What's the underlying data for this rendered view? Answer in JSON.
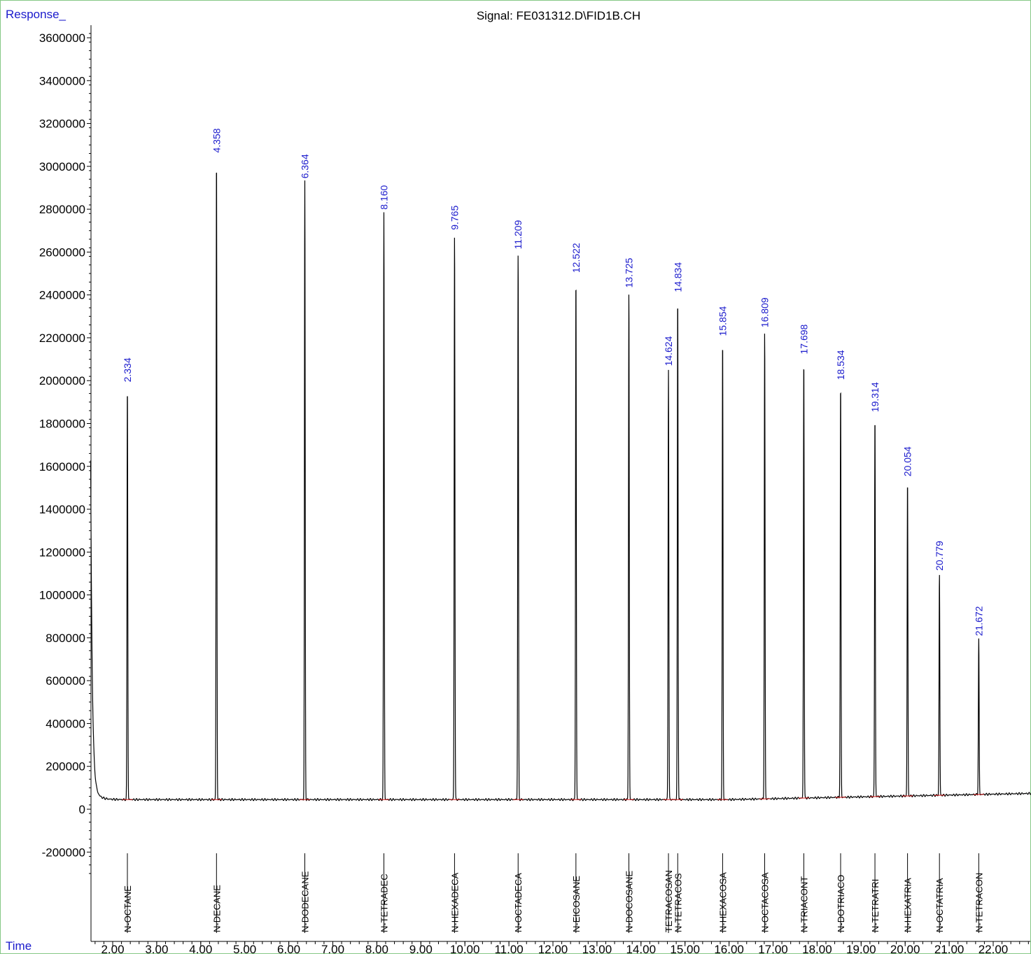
{
  "chart_data": {
    "type": "line",
    "title": "Signal: FE031312.D\\FID1B.CH",
    "xlabel": "Time",
    "ylabel": "Response_",
    "xlim": [
      1.5,
      22.9
    ],
    "ylim": [
      -300000,
      3700000
    ],
    "x_ticks": [
      "2.00",
      "3.00",
      "4.00",
      "5.00",
      "6.00",
      "7.00",
      "8.00",
      "9.00",
      "10.00",
      "11.00",
      "12.00",
      "13.00",
      "14.00",
      "15.00",
      "16.00",
      "17.00",
      "18.00",
      "19.00",
      "20.00",
      "21.00",
      "22.00"
    ],
    "y_ticks": [
      "3600000",
      "3400000",
      "3200000",
      "3000000",
      "2800000",
      "2600000",
      "2400000",
      "2200000",
      "2000000",
      "1800000",
      "1600000",
      "1400000",
      "1200000",
      "1000000",
      "800000",
      "600000",
      "400000",
      "200000",
      "0",
      "-200000"
    ],
    "series": [
      {
        "peaks": [
          {
            "rt": 2.334,
            "label": "2.334",
            "height": 1980000,
            "compound": "N-OCTANE"
          },
          {
            "rt": 4.358,
            "label": "4.358",
            "height": 3050000,
            "compound": "N-DECANE"
          },
          {
            "rt": 6.364,
            "label": "6.364",
            "height": 2930000,
            "compound": "N-DODECANE"
          },
          {
            "rt": 8.16,
            "label": "8.160",
            "height": 2785000,
            "compound": "N-TETRADEC"
          },
          {
            "rt": 9.765,
            "label": "9.765",
            "height": 2690000,
            "compound": "N-HEXADECA"
          },
          {
            "rt": 11.209,
            "label": "11.209",
            "height": 2600000,
            "compound": "N-OCTADECA"
          },
          {
            "rt": 12.522,
            "label": "12.522",
            "height": 2490000,
            "compound": "N-EICOSANE"
          },
          {
            "rt": 13.725,
            "label": "13.725",
            "height": 2420000,
            "compound": "N-DOCOSANE"
          },
          {
            "rt": 14.624,
            "label": "14.624",
            "height": 2055000,
            "compound": "TETRACOSAN"
          },
          {
            "rt": 14.834,
            "label": "14.834",
            "height": 2400000,
            "compound": "N-TETRACOS"
          },
          {
            "rt": 15.854,
            "label": "15.854",
            "height": 2195000,
            "compound": "N-HEXACOSA"
          },
          {
            "rt": 16.809,
            "label": "16.809",
            "height": 2235000,
            "compound": "N-OCTACOSA"
          },
          {
            "rt": 17.698,
            "label": "17.698",
            "height": 2110000,
            "compound": "N-TRIACONT"
          },
          {
            "rt": 18.534,
            "label": "18.534",
            "height": 1990000,
            "compound": "N-DOTRIACO"
          },
          {
            "rt": 19.314,
            "label": "19.314",
            "height": 1840000,
            "compound": "N-TETRATRI"
          },
          {
            "rt": 20.054,
            "label": "20.054",
            "height": 1540000,
            "compound": "N-HEXATRIA"
          },
          {
            "rt": 20.779,
            "label": "20.779",
            "height": 1100000,
            "compound": "N-OCTATRIA"
          },
          {
            "rt": 21.672,
            "label": "21.672",
            "height": 795000,
            "compound": "N-TETRACON"
          }
        ]
      }
    ],
    "grid": false,
    "legend": "none",
    "colors": {
      "trace": "#000000",
      "baseline": "#d01010",
      "annotation": "#1a1acc",
      "frame": "#86c886"
    }
  }
}
